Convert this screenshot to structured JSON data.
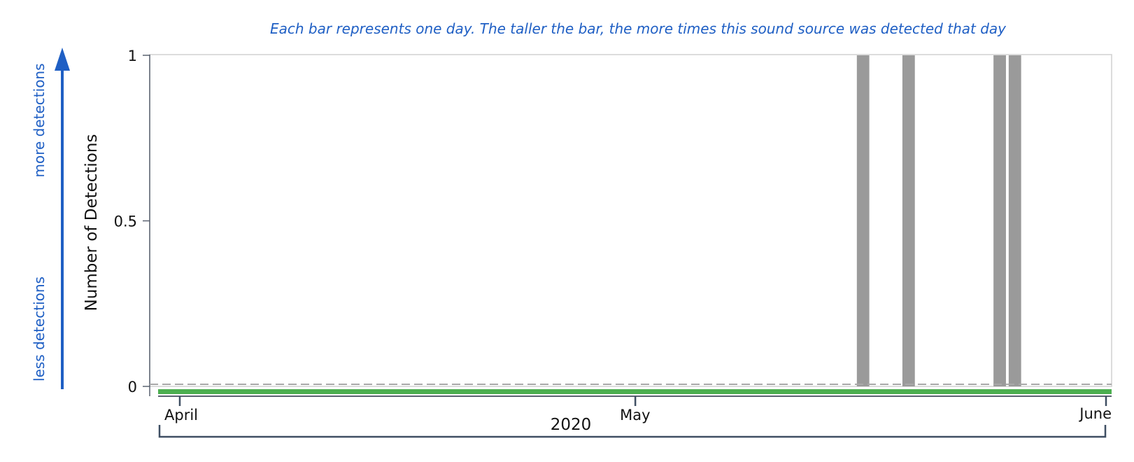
{
  "caption": "Each bar represents one day. The taller the bar, the more times this sound source was detected that day",
  "side_labels": {
    "more": "more detections",
    "less": "less detections"
  },
  "colors": {
    "caption": "#1f5fc4",
    "arrow": "#1f5fc4",
    "bar": "#9a9a9a",
    "baseline_band": "#4caf50",
    "dashed_reference": "#a8a8a8"
  },
  "chart_data": {
    "type": "bar",
    "ylabel": "Number of Detections",
    "ylim": [
      0,
      1
    ],
    "y_ticks": [
      {
        "value": 0,
        "label": "0"
      },
      {
        "value": 0.5,
        "label": "0.5"
      },
      {
        "value": 1,
        "label": "1"
      }
    ],
    "x_range": [
      "2020-03-30",
      "2020-06-01"
    ],
    "x_ticks": [
      {
        "date": "2020-04-01",
        "label": "April"
      },
      {
        "date": "2020-05-01",
        "label": "May"
      },
      {
        "date": "2020-06-01",
        "label": "June"
      }
    ],
    "x_group_label": "2020",
    "bars": [
      {
        "date": "2020-05-16",
        "value": 1
      },
      {
        "date": "2020-05-19",
        "value": 1
      },
      {
        "date": "2020-05-25",
        "value": 1
      },
      {
        "date": "2020-05-26",
        "value": 1
      }
    ],
    "reference_line": {
      "value": 0,
      "style": "dashed"
    },
    "grid": false
  }
}
